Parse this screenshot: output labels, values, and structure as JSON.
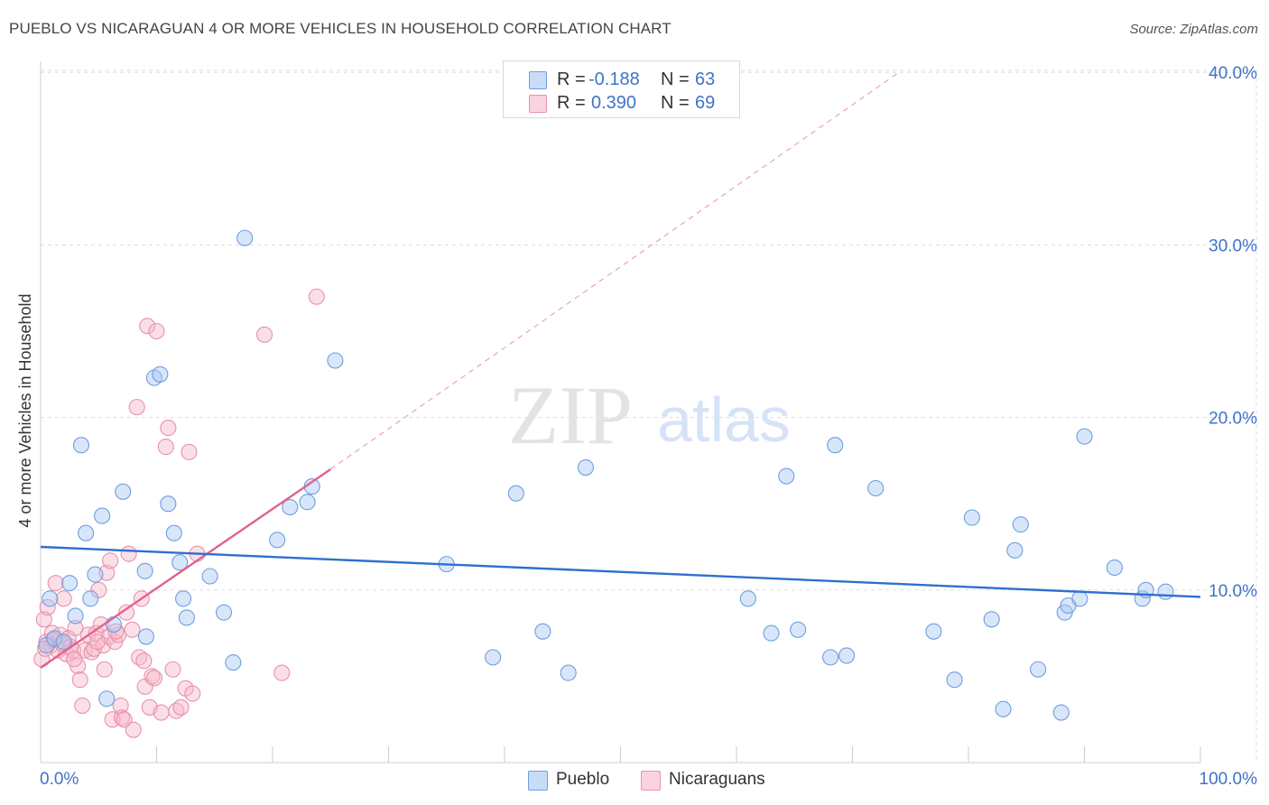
{
  "header": {
    "title": "PUEBLO VS NICARAGUAN 4 OR MORE VEHICLES IN HOUSEHOLD CORRELATION CHART",
    "source": "Source: ZipAtlas.com"
  },
  "watermark": {
    "zip": "ZIP",
    "atlas": "atlas"
  },
  "legend": {
    "rows": [
      {
        "r_label": "R = ",
        "r_value": "-0.188",
        "n_label": "N = ",
        "n_value": "63",
        "color": "#a9c8f2"
      },
      {
        "r_label": "R = ",
        "r_value": "0.390",
        "n_label": "N = ",
        "n_value": "69",
        "color": "#f7b8c9"
      }
    ]
  },
  "bottom_legend": [
    {
      "label": "Pueblo",
      "color": "#a9c8f2"
    },
    {
      "label": "Nicaraguans",
      "color": "#f7b8c9"
    }
  ],
  "chart_data": {
    "type": "scatter",
    "xlabel": "",
    "ylabel": "4 or more Vehicles in Household",
    "xlim": [
      0,
      100
    ],
    "ylim": [
      0,
      41
    ],
    "x_tick_labels": [
      "0.0%",
      "100.0%"
    ],
    "y_ticks": [
      10,
      20,
      30,
      40
    ],
    "y_tick_labels": [
      "10.0%",
      "20.0%",
      "30.0%",
      "40.0%"
    ],
    "grid": "horizontal dashed",
    "legend_position": "top-center",
    "series": [
      {
        "name": "Pueblo",
        "color": "#a9c8f2",
        "stroke": "#6f9ee0",
        "trend": {
          "x": [
            0,
            100
          ],
          "y": [
            12.5,
            9.6
          ],
          "color": "#2f6fcf"
        },
        "points": [
          [
            0.5,
            6.8
          ],
          [
            0.8,
            9.5
          ],
          [
            1.2,
            7.2
          ],
          [
            2.0,
            7.0
          ],
          [
            2.5,
            10.4
          ],
          [
            3.0,
            8.5
          ],
          [
            3.5,
            18.4
          ],
          [
            3.9,
            13.3
          ],
          [
            4.3,
            9.5
          ],
          [
            4.7,
            10.9
          ],
          [
            5.3,
            14.3
          ],
          [
            5.7,
            3.7
          ],
          [
            6.3,
            8.0
          ],
          [
            7.1,
            15.7
          ],
          [
            9.0,
            11.1
          ],
          [
            9.1,
            7.3
          ],
          [
            9.8,
            22.3
          ],
          [
            10.3,
            22.5
          ],
          [
            11.0,
            15.0
          ],
          [
            11.5,
            13.3
          ],
          [
            12.0,
            11.6
          ],
          [
            12.3,
            9.5
          ],
          [
            12.6,
            8.4
          ],
          [
            14.6,
            10.8
          ],
          [
            15.8,
            8.7
          ],
          [
            16.6,
            5.8
          ],
          [
            17.6,
            30.4
          ],
          [
            20.4,
            12.9
          ],
          [
            21.5,
            14.8
          ],
          [
            23.0,
            15.1
          ],
          [
            23.4,
            16.0
          ],
          [
            25.4,
            23.3
          ],
          [
            35.0,
            11.5
          ],
          [
            39.0,
            6.1
          ],
          [
            41.0,
            15.6
          ],
          [
            43.3,
            7.6
          ],
          [
            45.5,
            5.2
          ],
          [
            47.0,
            17.1
          ],
          [
            61.0,
            9.5
          ],
          [
            63.0,
            7.5
          ],
          [
            64.3,
            16.6
          ],
          [
            65.3,
            7.7
          ],
          [
            68.1,
            6.1
          ],
          [
            68.5,
            18.4
          ],
          [
            69.5,
            6.2
          ],
          [
            72.0,
            15.9
          ],
          [
            77.0,
            7.6
          ],
          [
            78.8,
            4.8
          ],
          [
            80.3,
            14.2
          ],
          [
            82.0,
            8.3
          ],
          [
            83.0,
            3.1
          ],
          [
            84.0,
            12.3
          ],
          [
            84.5,
            13.8
          ],
          [
            86.0,
            5.4
          ],
          [
            88.0,
            2.9
          ],
          [
            88.3,
            8.7
          ],
          [
            88.6,
            9.1
          ],
          [
            89.6,
            9.5
          ],
          [
            90.0,
            18.9
          ],
          [
            92.6,
            11.3
          ],
          [
            95.0,
            9.5
          ],
          [
            95.3,
            10.0
          ],
          [
            97.0,
            9.9
          ]
        ]
      },
      {
        "name": "Nicaraguans",
        "color": "#f7b8c9",
        "stroke": "#e891ab",
        "trend": {
          "x": [
            0,
            25
          ],
          "y": [
            5.5,
            17.0
          ],
          "color": "#e0638d",
          "dashed_extension_to": [
            74,
            40
          ]
        },
        "points": [
          [
            0.1,
            6.0
          ],
          [
            0.3,
            8.3
          ],
          [
            0.5,
            7.0
          ],
          [
            0.6,
            9.0
          ],
          [
            0.9,
            6.8
          ],
          [
            1.0,
            7.5
          ],
          [
            1.3,
            10.4
          ],
          [
            1.5,
            6.5
          ],
          [
            1.7,
            7.4
          ],
          [
            2.0,
            9.5
          ],
          [
            2.2,
            6.3
          ],
          [
            2.4,
            7.2
          ],
          [
            2.6,
            6.7
          ],
          [
            2.8,
            6.5
          ],
          [
            3.0,
            7.8
          ],
          [
            3.2,
            5.6
          ],
          [
            3.4,
            4.8
          ],
          [
            3.6,
            3.3
          ],
          [
            3.8,
            6.5
          ],
          [
            4.1,
            7.4
          ],
          [
            4.4,
            6.4
          ],
          [
            4.6,
            6.6
          ],
          [
            4.8,
            7.5
          ],
          [
            5.0,
            10.0
          ],
          [
            5.2,
            8.0
          ],
          [
            5.4,
            6.8
          ],
          [
            5.5,
            5.4
          ],
          [
            5.7,
            11.0
          ],
          [
            5.9,
            7.3
          ],
          [
            6.0,
            11.7
          ],
          [
            6.2,
            2.5
          ],
          [
            6.4,
            7.0
          ],
          [
            6.7,
            7.4
          ],
          [
            6.9,
            3.3
          ],
          [
            7.0,
            2.6
          ],
          [
            7.2,
            2.5
          ],
          [
            7.4,
            8.7
          ],
          [
            7.6,
            12.1
          ],
          [
            7.9,
            7.7
          ],
          [
            8.0,
            1.9
          ],
          [
            8.3,
            20.6
          ],
          [
            8.5,
            6.1
          ],
          [
            8.7,
            9.5
          ],
          [
            8.9,
            5.9
          ],
          [
            9.0,
            4.4
          ],
          [
            9.2,
            25.3
          ],
          [
            9.4,
            3.2
          ],
          [
            9.6,
            5.0
          ],
          [
            9.8,
            4.9
          ],
          [
            10.0,
            25.0
          ],
          [
            10.4,
            2.9
          ],
          [
            10.8,
            18.3
          ],
          [
            11.0,
            19.4
          ],
          [
            11.4,
            5.4
          ],
          [
            11.7,
            3.0
          ],
          [
            12.1,
            3.2
          ],
          [
            12.5,
            4.3
          ],
          [
            12.8,
            18.0
          ],
          [
            13.1,
            4.0
          ],
          [
            13.5,
            12.1
          ],
          [
            19.3,
            24.8
          ],
          [
            20.8,
            5.2
          ],
          [
            23.8,
            27.0
          ],
          [
            0.4,
            6.6
          ],
          [
            1.1,
            7.1
          ],
          [
            1.9,
            6.9
          ],
          [
            2.9,
            6.0
          ],
          [
            4.9,
            7.0
          ],
          [
            6.5,
            7.6
          ]
        ]
      }
    ]
  }
}
